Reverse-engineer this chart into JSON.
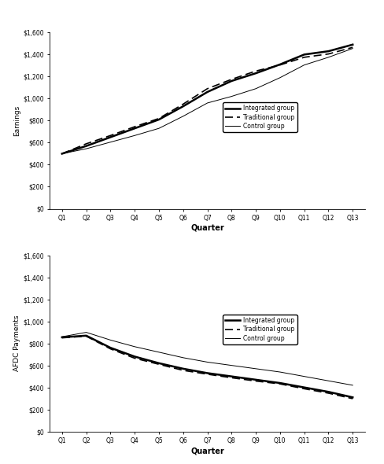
{
  "quarters": [
    "Q1",
    "Q2",
    "Q3",
    "Q4",
    "Q5",
    "Q6",
    "Q7",
    "Q8",
    "Q9",
    "Q10",
    "Q11",
    "Q12",
    "Q13"
  ],
  "earnings": {
    "integrated": [
      500,
      570,
      650,
      730,
      810,
      930,
      1060,
      1160,
      1230,
      1310,
      1400,
      1430,
      1490
    ],
    "traditional": [
      500,
      590,
      665,
      745,
      820,
      950,
      1090,
      1175,
      1250,
      1305,
      1375,
      1405,
      1465
    ],
    "control": [
      500,
      545,
      605,
      665,
      730,
      840,
      960,
      1020,
      1090,
      1190,
      1305,
      1375,
      1455
    ]
  },
  "afdc": {
    "integrated": [
      855,
      870,
      760,
      680,
      620,
      570,
      530,
      500,
      470,
      440,
      400,
      360,
      310
    ],
    "traditional": [
      850,
      865,
      750,
      665,
      610,
      555,
      520,
      488,
      458,
      432,
      388,
      348,
      298
    ],
    "control": [
      860,
      900,
      830,
      770,
      720,
      670,
      630,
      600,
      570,
      540,
      500,
      460,
      420
    ]
  },
  "earnings_ylim": [
    0,
    1600
  ],
  "afdc_ylim": [
    0,
    1600
  ],
  "yticks": [
    0,
    200,
    400,
    600,
    800,
    1000,
    1200,
    1400,
    1600
  ],
  "ylabel_earnings": "Earnings",
  "ylabel_afdc": "AFDC Payments",
  "xlabel": "Quarter",
  "legend_labels": [
    "Integrated group",
    "Traditional group",
    "Control group"
  ],
  "bg_color": "white",
  "figsize": [
    4.88,
    5.9
  ],
  "dpi": 100
}
